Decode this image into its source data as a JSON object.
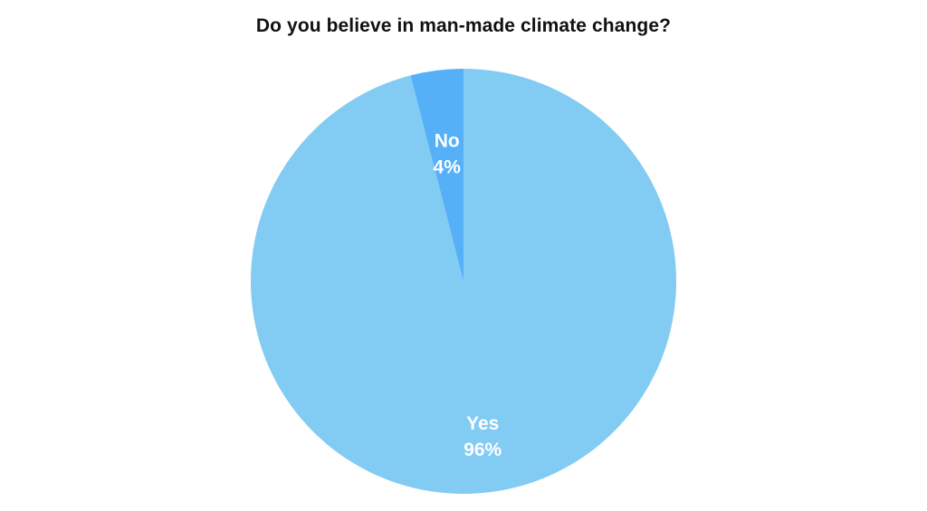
{
  "chart_data": {
    "type": "pie",
    "title": "Do you believe in man-made climate change?",
    "slices": [
      {
        "label": "Yes",
        "value": 96,
        "display": "96%",
        "color": "#82cbf3"
      },
      {
        "label": "No",
        "value": 4,
        "display": "4%",
        "color": "#55b0f7"
      }
    ],
    "start_angle_deg": 0,
    "direction": "clockwise"
  }
}
